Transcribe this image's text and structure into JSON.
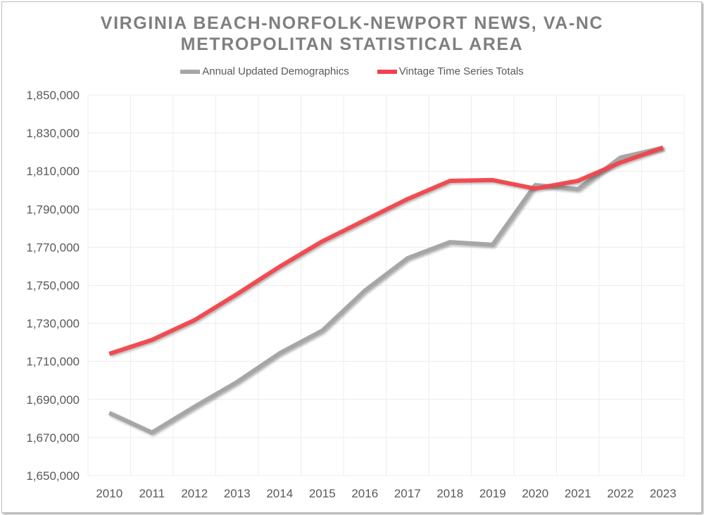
{
  "chart_data": {
    "type": "line",
    "title_line1": "VIRGINIA BEACH-NORFOLK-NEWPORT NEWS, VA-NC",
    "title_line2": "METROPOLITAN STATISTICAL AREA",
    "xlabel": "",
    "ylabel": "",
    "categories": [
      "2010",
      "2011",
      "2012",
      "2013",
      "2014",
      "2015",
      "2016",
      "2017",
      "2018",
      "2019",
      "2020",
      "2021",
      "2022",
      "2023"
    ],
    "ylim": [
      1650000,
      1850000
    ],
    "yticks": [
      1650000,
      1670000,
      1690000,
      1710000,
      1730000,
      1750000,
      1770000,
      1790000,
      1810000,
      1830000,
      1850000
    ],
    "ytick_labels": [
      "1,650,000",
      "1,670,000",
      "1,690,000",
      "1,710,000",
      "1,730,000",
      "1,750,000",
      "1,770,000",
      "1,790,000",
      "1,810,000",
      "1,830,000",
      "1,850,000"
    ],
    "grid": true,
    "legend_placement": "top-center",
    "series": [
      {
        "name": "Annual Updated Demographics",
        "color": "#a6a6a6",
        "values": [
          1682900,
          1672600,
          1686200,
          1699200,
          1714300,
          1726200,
          1747200,
          1764200,
          1772700,
          1771300,
          1802700,
          1800500,
          1817100,
          1822300
        ]
      },
      {
        "name": "Vintage Time Series Totals",
        "color": "#f0434c",
        "values": [
          1714000,
          1721300,
          1731700,
          1745400,
          1759800,
          1773100,
          1784200,
          1795300,
          1804900,
          1805300,
          1800800,
          1804900,
          1814500,
          1822300
        ]
      }
    ]
  }
}
